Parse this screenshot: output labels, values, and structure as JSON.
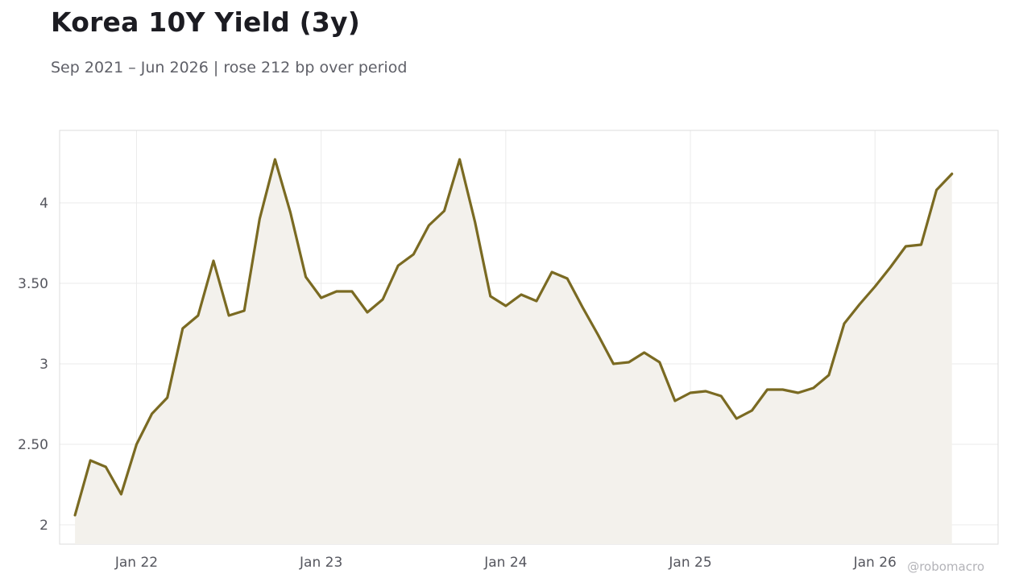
{
  "title": "Korea 10Y Yield (3y)",
  "subtitle": "Sep 2021 – Jun 2026 | rose 212 bp over period",
  "watermark": "@robomacro",
  "colors": {
    "line": "#7a6a22",
    "fill": "#f3f1ec",
    "grid": "#ebebeb",
    "frame": "#dcdcdc"
  },
  "chart_data": {
    "type": "area",
    "ylim": [
      1.88,
      4.45
    ],
    "xlim": [
      "2021-08",
      "2026-09"
    ],
    "grid": true,
    "y_ticks": [
      {
        "value": 2,
        "label": "2"
      },
      {
        "value": 2.5,
        "label": "2.50"
      },
      {
        "value": 3,
        "label": "3"
      },
      {
        "value": 3.5,
        "label": "3.50"
      },
      {
        "value": 4,
        "label": "4"
      }
    ],
    "x_ticks": [
      {
        "value": "2022-01",
        "label": "Jan 22"
      },
      {
        "value": "2023-01",
        "label": "Jan 23"
      },
      {
        "value": "2024-01",
        "label": "Jan 24"
      },
      {
        "value": "2025-01",
        "label": "Jan 25"
      },
      {
        "value": "2026-01",
        "label": "Jan 26"
      }
    ],
    "x": [
      "2021-09",
      "2021-10",
      "2021-11",
      "2021-12",
      "2022-01",
      "2022-02",
      "2022-03",
      "2022-04",
      "2022-05",
      "2022-06",
      "2022-07",
      "2022-08",
      "2022-09",
      "2022-10",
      "2022-11",
      "2022-12",
      "2023-01",
      "2023-02",
      "2023-03",
      "2023-04",
      "2023-05",
      "2023-06",
      "2023-07",
      "2023-08",
      "2023-09",
      "2023-10",
      "2023-11",
      "2023-12",
      "2024-01",
      "2024-02",
      "2024-03",
      "2024-04",
      "2024-05",
      "2024-06",
      "2024-07",
      "2024-08",
      "2024-09",
      "2024-10",
      "2024-11",
      "2024-12",
      "2025-01",
      "2025-02",
      "2025-03",
      "2025-04",
      "2025-05",
      "2025-06",
      "2025-07",
      "2025-08",
      "2025-09",
      "2025-10",
      "2025-11",
      "2025-12",
      "2026-01",
      "2026-02",
      "2026-03",
      "2026-04",
      "2026-05",
      "2026-06"
    ],
    "values": [
      2.06,
      2.4,
      2.36,
      2.19,
      2.5,
      2.69,
      2.79,
      3.22,
      3.3,
      3.64,
      3.3,
      3.33,
      3.9,
      4.27,
      3.94,
      3.54,
      3.41,
      3.45,
      3.45,
      3.32,
      3.4,
      3.61,
      3.68,
      3.86,
      3.95,
      4.27,
      3.88,
      3.42,
      3.36,
      3.43,
      3.39,
      3.57,
      3.53,
      3.35,
      3.18,
      3.0,
      3.01,
      3.07,
      3.01,
      2.77,
      2.82,
      2.83,
      2.8,
      2.66,
      2.71,
      2.84,
      2.84,
      2.82,
      2.85,
      2.93,
      3.25,
      3.37,
      3.48,
      3.6,
      3.73,
      3.74,
      4.08,
      4.18
    ]
  }
}
